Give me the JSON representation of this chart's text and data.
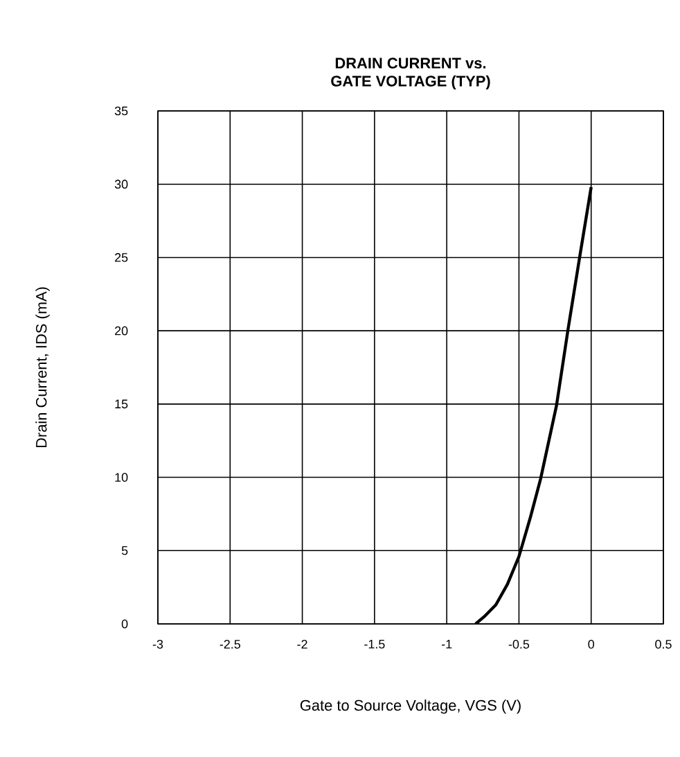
{
  "chart_data": {
    "type": "line",
    "title": "DRAIN CURRENT vs.\nGATE VOLTAGE (TYP)",
    "xlabel": "Gate to Source Voltage, VGS (V)",
    "ylabel": "Drain Current, IDS (mA)",
    "series": [
      {
        "color": "#000000",
        "x": [
          -0.8,
          -0.74,
          -0.66,
          -0.58,
          -0.5,
          -0.42,
          -0.35,
          -0.24,
          -0.16,
          -0.08,
          0
        ],
        "values": [
          0,
          0.5,
          1.3,
          2.7,
          4.6,
          7.3,
          9.9,
          14.9,
          20.1,
          25,
          29.8
        ]
      }
    ],
    "xlim": [
      -3,
      0.5
    ],
    "ylim": [
      0,
      35
    ],
    "xticks": [
      -3,
      -2.5,
      -2,
      -1.5,
      -1,
      -0.5,
      0,
      0.5
    ],
    "yticks": [
      0,
      5,
      10,
      15,
      20,
      25,
      30,
      35
    ],
    "grid": true,
    "marker": "none",
    "line_style": "solid"
  }
}
